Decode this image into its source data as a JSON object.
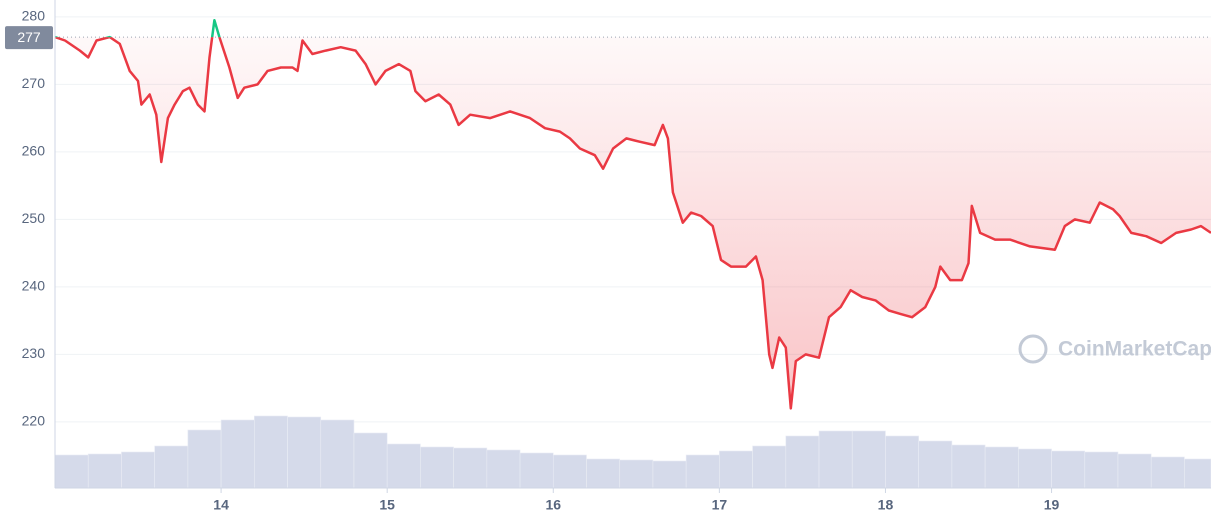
{
  "chart_data": {
    "type": "line",
    "x": [
      13.0,
      13.06,
      13.15,
      13.2,
      13.25,
      13.33,
      13.39,
      13.45,
      13.5,
      13.52,
      13.57,
      13.61,
      13.64,
      13.68,
      13.72,
      13.77,
      13.81,
      13.86,
      13.9,
      13.93,
      13.96,
      13.99,
      14.05,
      14.1,
      14.14,
      14.22,
      14.28,
      14.36,
      14.43,
      14.46,
      14.49,
      14.55,
      14.63,
      14.72,
      14.81,
      14.87,
      14.93,
      14.99,
      15.07,
      15.14,
      15.17,
      15.23,
      15.31,
      15.38,
      15.43,
      15.5,
      15.62,
      15.74,
      15.86,
      15.95,
      16.04,
      16.1,
      16.16,
      16.25,
      16.3,
      16.36,
      16.44,
      16.52,
      16.61,
      16.66,
      16.69,
      16.72,
      16.78,
      16.83,
      16.89,
      16.96,
      17.01,
      17.07,
      17.16,
      17.22,
      17.26,
      17.3,
      17.32,
      17.36,
      17.4,
      17.43,
      17.46,
      17.52,
      17.6,
      17.66,
      17.73,
      17.79,
      17.86,
      17.94,
      18.02,
      18.09,
      18.16,
      18.24,
      18.3,
      18.33,
      18.39,
      18.46,
      18.5,
      18.52,
      18.57,
      18.66,
      18.75,
      18.87,
      19.02,
      19.08,
      19.14,
      19.23,
      19.29,
      19.37,
      19.41,
      19.48,
      19.57,
      19.66,
      19.75,
      19.84,
      19.9,
      19.96
    ],
    "values": [
      277,
      276.5,
      275,
      274,
      276.5,
      277,
      276,
      272,
      270.5,
      267,
      268.5,
      265.5,
      258.5,
      265,
      267,
      269,
      269.5,
      267,
      266,
      274,
      279.5,
      277,
      272.5,
      268,
      269.5,
      270,
      272,
      272.5,
      272.5,
      272,
      276.5,
      274.5,
      275,
      275.5,
      275,
      273,
      270,
      272,
      273,
      272,
      269,
      267.5,
      268.5,
      267,
      264,
      265.5,
      265,
      266,
      265,
      263.5,
      263,
      262,
      260.5,
      259.5,
      257.5,
      260.5,
      262,
      261.5,
      261,
      264,
      262,
      254,
      249.5,
      251,
      250.5,
      249,
      244,
      243,
      243,
      244.5,
      241,
      230,
      228,
      232.5,
      231,
      222,
      229,
      230,
      229.5,
      235.5,
      237,
      239.5,
      238.5,
      238,
      236.5,
      236,
      235.5,
      237,
      240,
      243,
      241,
      241,
      243.5,
      252,
      248,
      247,
      247,
      246,
      245.5,
      249,
      250,
      249.5,
      252.5,
      251.5,
      250.5,
      248,
      247.5,
      246.5,
      248,
      248.5,
      249,
      248
    ],
    "color": "#ea3943",
    "above_color": "#16c784",
    "reference_line": 277,
    "volume": {
      "x": [
        13.0,
        13.2,
        13.4,
        13.6,
        13.8,
        14.0,
        14.2,
        14.4,
        14.6,
        14.8,
        15.0,
        15.2,
        15.4,
        15.6,
        15.8,
        16.0,
        16.2,
        16.4,
        16.6,
        16.8,
        17.0,
        17.2,
        17.4,
        17.6,
        17.8,
        18.0,
        18.2,
        18.4,
        18.6,
        18.8,
        19.0,
        19.2,
        19.4,
        19.6,
        19.8
      ],
      "values": [
        33,
        34,
        36,
        42,
        58,
        68,
        72,
        71,
        68,
        55,
        44,
        41,
        40,
        38,
        35,
        33,
        29,
        28,
        27,
        33,
        37,
        42,
        52,
        57,
        57,
        52,
        47,
        43,
        41,
        39,
        37,
        36,
        34,
        31,
        29
      ],
      "color": "#d5daea"
    },
    "y2lim": [
      0,
      100
    ],
    "xlim": [
      13,
      19.96
    ],
    "xticks": [
      14,
      15,
      16,
      17,
      18,
      19
    ],
    "ylim": [
      210.2,
      282.5
    ],
    "yticks": [
      220,
      230,
      240,
      250,
      260,
      270,
      280
    ],
    "grid": true,
    "watermark": "CoinMarketCap"
  }
}
